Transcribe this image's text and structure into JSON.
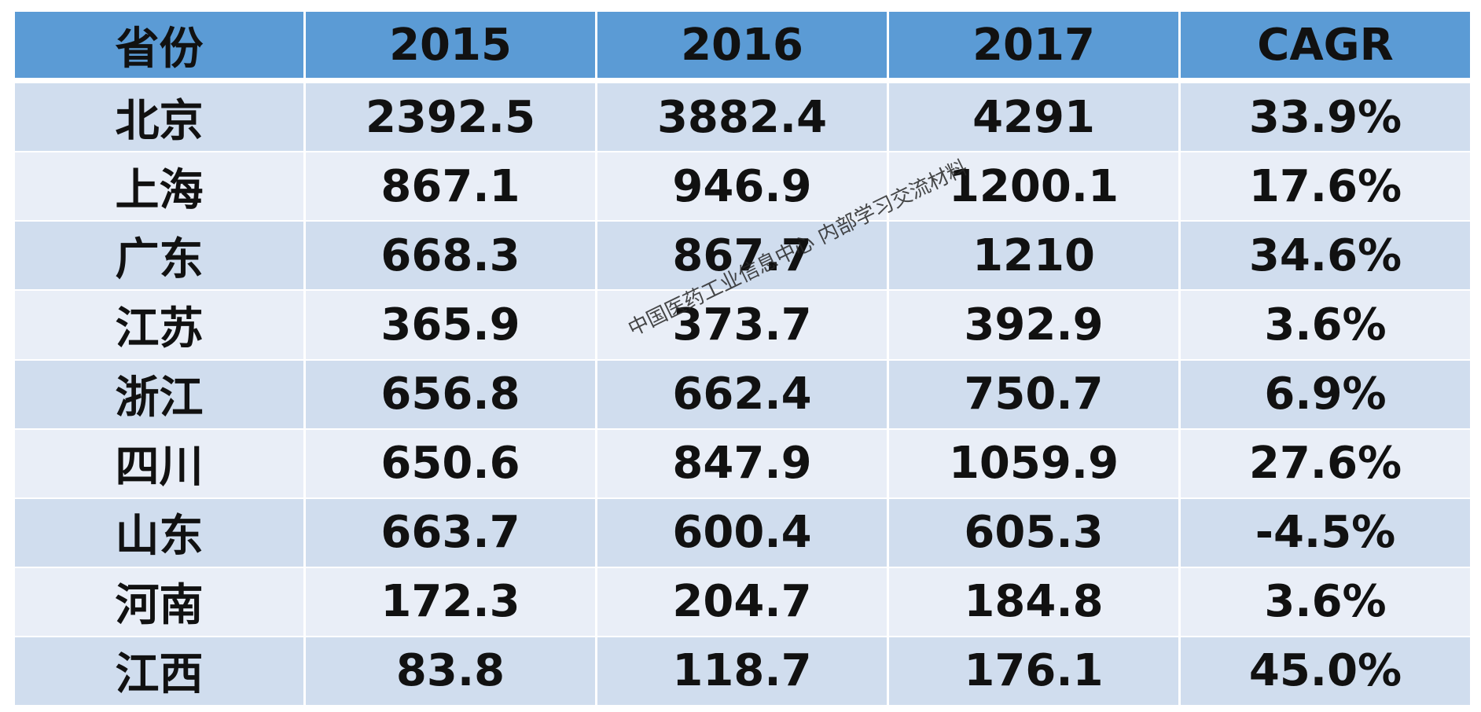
{
  "chart_data": {
    "type": "table",
    "columns": [
      "省份",
      "2015",
      "2016",
      "2017",
      "CAGR"
    ],
    "rows": [
      [
        "北京",
        "2392.5",
        "3882.4",
        "4291",
        "33.9%"
      ],
      [
        "上海",
        "867.1",
        "946.9",
        "1200.1",
        "17.6%"
      ],
      [
        "广东",
        "668.3",
        "867.7",
        "1210",
        "34.6%"
      ],
      [
        "江苏",
        "365.9",
        "373.7",
        "392.9",
        "3.6%"
      ],
      [
        "浙江",
        "656.8",
        "662.4",
        "750.7",
        "6.9%"
      ],
      [
        "四川",
        "650.6",
        "847.9",
        "1059.9",
        "27.6%"
      ],
      [
        "山东",
        "663.7",
        "600.4",
        "605.3",
        "-4.5%"
      ],
      [
        "河南",
        "172.3",
        "204.7",
        "184.8",
        "3.6%"
      ],
      [
        "江西",
        "83.8",
        "118.7",
        "176.1",
        "45.0%"
      ]
    ]
  },
  "colors": {
    "header_bg": "#5b9bd5",
    "row_dark": "#d0ddee",
    "row_light": "#e9eef7"
  },
  "watermark": "中国医药工业信息中心 内部学习交流材料"
}
